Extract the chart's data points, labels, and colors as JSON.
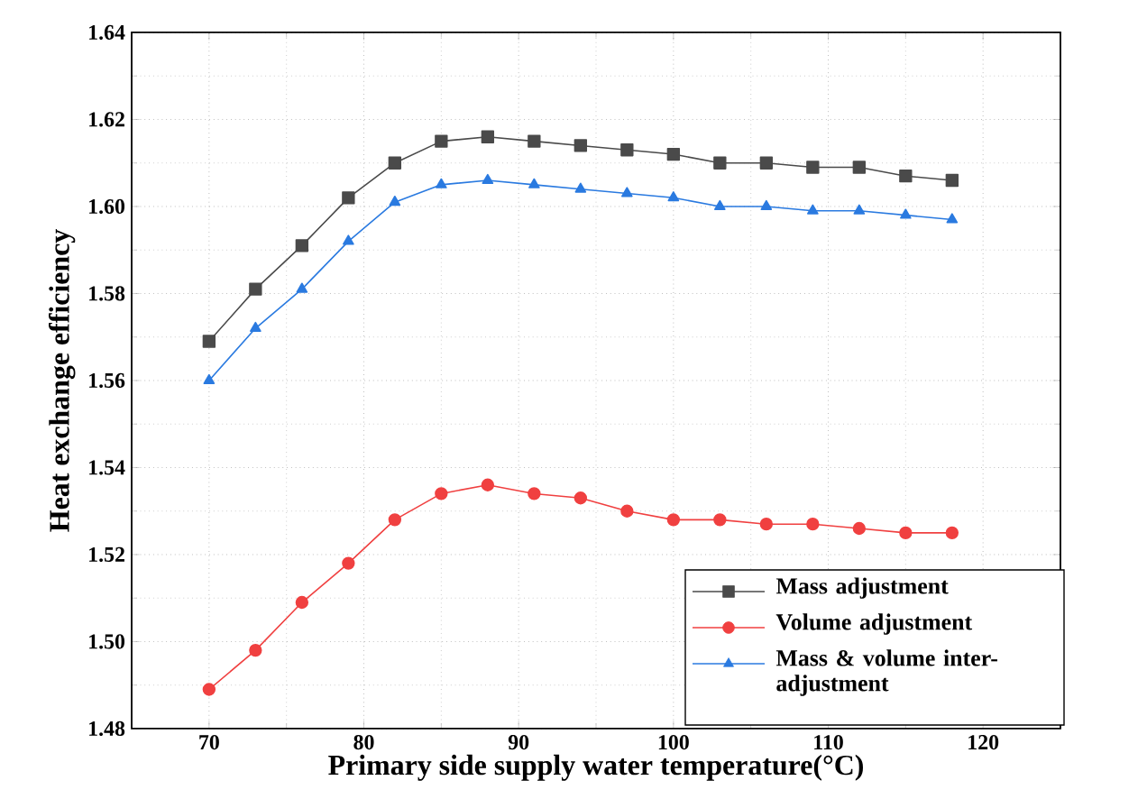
{
  "chart_data": {
    "type": "line",
    "xlabel": "Primary side supply water temperature(°C)",
    "ylabel": "Heat exchange efficiency",
    "x": [
      70,
      73,
      76,
      79,
      82,
      85,
      88,
      91,
      94,
      97,
      100,
      103,
      106,
      109,
      112,
      115,
      118
    ],
    "series": [
      {
        "name": "Mass adjustment",
        "color": "#4a4a4a",
        "marker": "square",
        "values": [
          1.569,
          1.581,
          1.591,
          1.602,
          1.61,
          1.615,
          1.616,
          1.615,
          1.614,
          1.613,
          1.612,
          1.61,
          1.61,
          1.609,
          1.609,
          1.607,
          1.606
        ]
      },
      {
        "name": "Volume adjustment",
        "color": "#f04040",
        "marker": "circle",
        "values": [
          1.489,
          1.498,
          1.509,
          1.518,
          1.528,
          1.534,
          1.536,
          1.534,
          1.533,
          1.53,
          1.528,
          1.528,
          1.527,
          1.527,
          1.526,
          1.525,
          1.525
        ]
      },
      {
        "name": "Mass & volume inter-adjustment",
        "color": "#2a7ae0",
        "marker": "triangle",
        "values": [
          1.56,
          1.572,
          1.581,
          1.592,
          1.601,
          1.605,
          1.606,
          1.605,
          1.604,
          1.603,
          1.602,
          1.6,
          1.6,
          1.599,
          1.599,
          1.598,
          1.597
        ]
      }
    ],
    "xlim": [
      65,
      125
    ],
    "xticks": [
      70,
      80,
      90,
      100,
      110,
      120
    ],
    "ylim": [
      1.48,
      1.64
    ],
    "yticks": [
      {
        "value": 1.48,
        "label": "1.48"
      },
      {
        "value": 1.5,
        "label": "1.50"
      },
      {
        "value": 1.52,
        "label": "1.52"
      },
      {
        "value": 1.54,
        "label": "1.54"
      },
      {
        "value": 1.56,
        "label": "1.56"
      },
      {
        "value": 1.58,
        "label": "1.58"
      },
      {
        "value": 1.6,
        "label": "1.60"
      },
      {
        "value": 1.62,
        "label": "1.62"
      },
      {
        "value": 1.64,
        "label": "1.64"
      }
    ],
    "grid": true,
    "legend": "bottom right",
    "line_style": "solid"
  }
}
